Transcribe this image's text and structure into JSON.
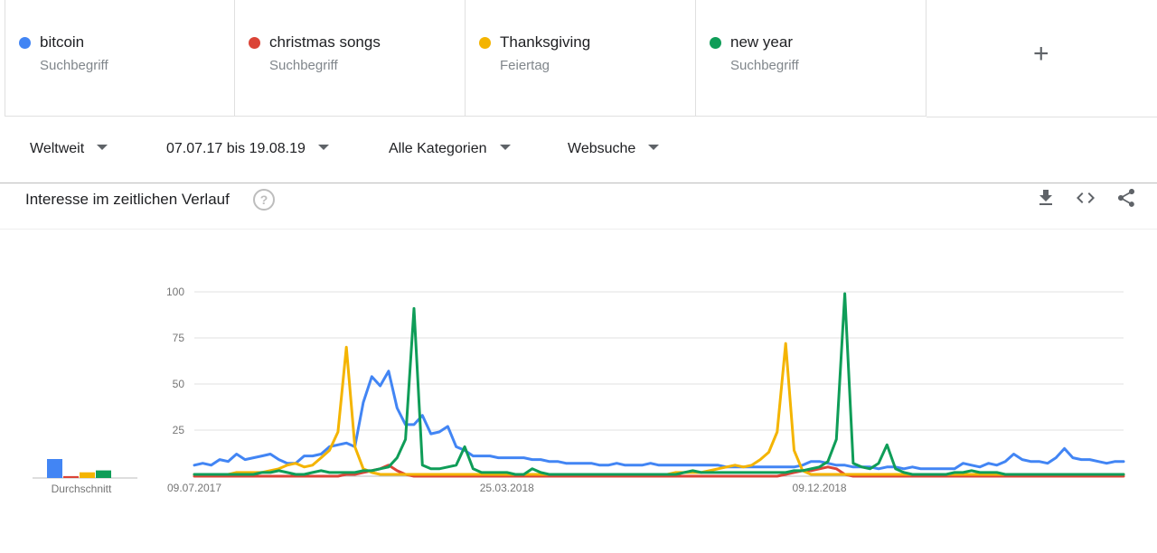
{
  "terms": [
    {
      "name": "bitcoin",
      "kind": "Suchbegriff",
      "color": "#4285f4"
    },
    {
      "name": "christmas songs",
      "kind": "Suchbegriff",
      "color": "#db4437"
    },
    {
      "name": "Thanksgiving",
      "kind": "Feiertag",
      "color": "#f4b400"
    },
    {
      "name": "new year",
      "kind": "Suchbegriff",
      "color": "#0f9d58"
    }
  ],
  "add_label": "+",
  "filters": {
    "region": "Weltweit",
    "date_range": "07.07.17 bis 19.08.19",
    "category": "Alle Kategorien",
    "search_type": "Websuche"
  },
  "panel": {
    "title": "Interesse im zeitlichen Verlauf",
    "help": "?"
  },
  "icons": {
    "download": "download-icon",
    "embed": "embed-code-icon",
    "share": "share-icon"
  },
  "chart_data": {
    "type": "line",
    "title": "",
    "y_ticks": [
      "100",
      "75",
      "50",
      "25"
    ],
    "ylim": [
      0,
      100
    ],
    "x_tick_labels": [
      "09.07.2017",
      "25.03.2018",
      "09.12.2018"
    ],
    "x_tick_indices": [
      0,
      37,
      74
    ],
    "grid": true,
    "average_label": "Durchschnitt",
    "averages": [
      10,
      1,
      3,
      4
    ],
    "series": [
      {
        "name": "bitcoin",
        "color": "#4285f4",
        "values": [
          6,
          7,
          6,
          9,
          8,
          12,
          9,
          10,
          11,
          12,
          9,
          7,
          7,
          11,
          11,
          12,
          16,
          17,
          18,
          16,
          40,
          54,
          49,
          57,
          37,
          28,
          28,
          33,
          23,
          24,
          27,
          16,
          14,
          11,
          11,
          11,
          10,
          10,
          10,
          10,
          9,
          9,
          8,
          8,
          7,
          7,
          7,
          7,
          6,
          6,
          7,
          6,
          6,
          6,
          7,
          6,
          6,
          6,
          6,
          6,
          6,
          6,
          6,
          5,
          5,
          5,
          5,
          5,
          5,
          5,
          5,
          5,
          6,
          8,
          8,
          7,
          6,
          6,
          5,
          5,
          5,
          4,
          5,
          5,
          4,
          5,
          4,
          4,
          4,
          4,
          4,
          7,
          6,
          5,
          7,
          6,
          8,
          12,
          9,
          8,
          8,
          7,
          10,
          15,
          10,
          9,
          9,
          8,
          7,
          8,
          8
        ]
      },
      {
        "name": "christmas songs",
        "color": "#db4437",
        "values": [
          0,
          0,
          0,
          0,
          0,
          0,
          0,
          0,
          0,
          0,
          0,
          0,
          0,
          0,
          0,
          0,
          0,
          0,
          1,
          1,
          2,
          3,
          4,
          6,
          3,
          1,
          0,
          0,
          0,
          0,
          0,
          0,
          0,
          0,
          0,
          0,
          0,
          0,
          0,
          0,
          0,
          0,
          0,
          0,
          0,
          0,
          0,
          0,
          0,
          0,
          0,
          0,
          0,
          0,
          0,
          0,
          0,
          0,
          0,
          0,
          0,
          0,
          0,
          0,
          0,
          0,
          0,
          0,
          0,
          0,
          1,
          2,
          3,
          3,
          4,
          5,
          4,
          1,
          0,
          0,
          0,
          0,
          0,
          0,
          0,
          0,
          0,
          0,
          0,
          0,
          0,
          0,
          0,
          0,
          0,
          0,
          0,
          0,
          0,
          0,
          0,
          0,
          0,
          0,
          0,
          0,
          0,
          0,
          0,
          0,
          0
        ]
      },
      {
        "name": "Thanksgiving",
        "color": "#f4b400",
        "values": [
          1,
          1,
          1,
          1,
          1,
          2,
          2,
          2,
          2,
          3,
          4,
          6,
          7,
          5,
          6,
          10,
          14,
          24,
          70,
          16,
          4,
          2,
          1,
          1,
          1,
          1,
          1,
          1,
          1,
          1,
          1,
          1,
          1,
          1,
          1,
          1,
          1,
          1,
          1,
          1,
          1,
          1,
          1,
          1,
          1,
          1,
          1,
          1,
          1,
          1,
          1,
          1,
          1,
          1,
          1,
          1,
          1,
          2,
          2,
          2,
          2,
          3,
          4,
          5,
          6,
          5,
          6,
          9,
          13,
          24,
          72,
          14,
          3,
          1,
          1,
          1,
          1,
          1,
          1,
          1,
          1,
          1,
          1,
          1,
          1,
          1,
          1,
          1,
          1,
          1,
          1,
          1,
          1,
          1,
          1,
          1,
          1,
          1,
          1,
          1,
          1,
          1,
          1,
          1,
          1,
          1,
          1,
          1,
          1,
          1,
          1
        ]
      },
      {
        "name": "new year",
        "color": "#0f9d58",
        "values": [
          1,
          1,
          1,
          1,
          1,
          1,
          1,
          1,
          2,
          2,
          3,
          2,
          1,
          1,
          2,
          3,
          2,
          2,
          2,
          2,
          3,
          3,
          4,
          5,
          10,
          20,
          91,
          6,
          4,
          4,
          5,
          6,
          16,
          4,
          2,
          2,
          2,
          2,
          1,
          1,
          4,
          2,
          1,
          1,
          1,
          1,
          1,
          1,
          1,
          1,
          1,
          1,
          1,
          1,
          1,
          1,
          1,
          1,
          2,
          3,
          2,
          2,
          2,
          2,
          2,
          2,
          2,
          2,
          2,
          2,
          2,
          3,
          3,
          4,
          5,
          8,
          20,
          99,
          7,
          5,
          4,
          7,
          17,
          4,
          2,
          1,
          1,
          1,
          1,
          1,
          2,
          2,
          3,
          2,
          2,
          2,
          1,
          1,
          1,
          1,
          1,
          1,
          1,
          1,
          1,
          1,
          1,
          1,
          1,
          1,
          1
        ]
      }
    ]
  }
}
